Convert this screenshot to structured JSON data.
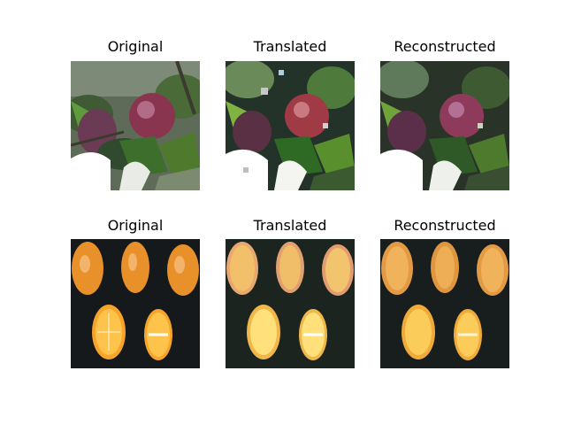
{
  "figure": {
    "rows": [
      {
        "titles": [
          "Original",
          "Translated",
          "Reconstructed"
        ],
        "subject": "apple"
      },
      {
        "titles": [
          "Original",
          "Translated",
          "Reconstructed"
        ],
        "subject": "oranges"
      }
    ]
  },
  "colors": {
    "apple_red": "#8a3550",
    "leaf_green": "#4f7a2d",
    "orange": "#e8902a",
    "dark_bg": "#15191c"
  }
}
